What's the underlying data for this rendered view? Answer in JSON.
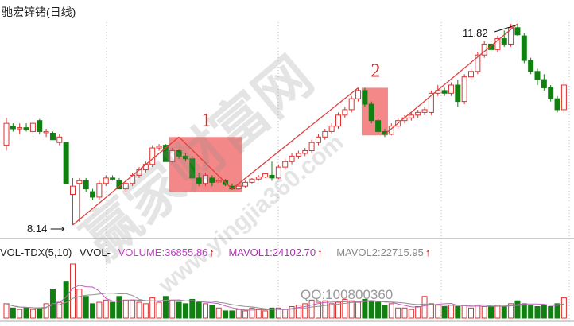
{
  "title": "驰宏锌锗(日线)",
  "annotations": {
    "low_label": "8.14",
    "high_label": "11.82",
    "box1_label": "1",
    "box2_label": "2",
    "qq": "QQ:100800360"
  },
  "watermark": {
    "text1": "赢家财富网",
    "text2": "www.yingjia360.com"
  },
  "volume_header": {
    "indicator": "VOL-TDX(5,10)",
    "vvol": "VVOL-",
    "volume": "VOLUME:36855.86",
    "mavol1": "MAVOL1:24102.70",
    "mavol2": "MAVOL2:22715.95",
    "arrow": "↑"
  },
  "colors": {
    "up": "#e03030",
    "down": "#108010",
    "box": "#f06060",
    "ma1": "#c060c0",
    "ma2": "#909090",
    "volume_text": "#c040c0"
  },
  "chart_data": {
    "type": "candlestick",
    "title": "驰宏锌锗(日线)",
    "price_range": [
      8.14,
      11.82
    ],
    "grid": "vertical dotted",
    "candles_ohlc": [
      [
        9.6,
        10.1,
        9.5,
        10.0
      ],
      [
        9.95,
        10.0,
        9.85,
        9.9
      ],
      [
        9.9,
        10.0,
        9.8,
        9.92
      ],
      [
        9.92,
        10.0,
        9.85,
        9.88
      ],
      [
        9.85,
        10.05,
        9.8,
        10.0
      ],
      [
        10.05,
        10.08,
        9.8,
        9.85
      ],
      [
        9.85,
        9.9,
        9.75,
        9.85
      ],
      [
        9.82,
        9.85,
        9.7,
        9.7
      ],
      [
        9.65,
        9.8,
        9.6,
        9.75
      ],
      [
        9.65,
        9.65,
        8.9,
        8.9
      ],
      [
        8.7,
        9.0,
        8.14,
        8.85
      ],
      [
        8.9,
        9.0,
        8.2,
        8.95
      ],
      [
        8.95,
        9.0,
        8.75,
        8.8
      ],
      [
        8.75,
        8.8,
        8.6,
        8.65
      ],
      [
        8.65,
        8.95,
        8.6,
        8.9
      ],
      [
        8.9,
        9.05,
        8.85,
        9.0
      ],
      [
        9.0,
        9.05,
        8.95,
        8.98
      ],
      [
        8.95,
        9.0,
        8.85,
        8.8
      ],
      [
        8.8,
        8.95,
        8.75,
        8.9
      ],
      [
        8.9,
        9.1,
        8.85,
        9.05
      ],
      [
        9.05,
        9.2,
        9.0,
        9.15
      ],
      [
        9.15,
        9.3,
        9.1,
        9.25
      ],
      [
        9.25,
        9.6,
        9.2,
        9.55
      ],
      [
        9.55,
        9.62,
        9.5,
        9.58
      ],
      [
        9.6,
        9.62,
        9.3,
        9.3
      ],
      [
        9.3,
        9.55,
        9.28,
        9.5
      ],
      [
        9.5,
        9.52,
        9.35,
        9.4
      ],
      [
        9.4,
        9.45,
        9.3,
        9.35
      ],
      [
        9.35,
        9.4,
        9.0,
        9.0
      ],
      [
        9.0,
        9.1,
        8.85,
        8.9
      ],
      [
        8.9,
        9.1,
        8.85,
        9.05
      ],
      [
        9.0,
        9.05,
        8.85,
        8.92
      ],
      [
        8.95,
        9.0,
        8.9,
        8.95
      ],
      [
        8.95,
        8.98,
        8.85,
        8.88
      ],
      [
        8.85,
        8.9,
        8.78,
        8.8
      ],
      [
        8.8,
        8.9,
        8.78,
        8.85
      ],
      [
        8.85,
        8.95,
        8.82,
        8.92
      ],
      [
        8.92,
        9.0,
        8.9,
        8.98
      ],
      [
        8.98,
        9.05,
        8.95,
        9.02
      ],
      [
        9.02,
        9.1,
        9.0,
        9.08
      ],
      [
        9.05,
        9.3,
        8.95,
        9.0
      ],
      [
        9.0,
        9.25,
        8.98,
        9.2
      ],
      [
        9.2,
        9.35,
        9.15,
        9.3
      ],
      [
        9.3,
        9.45,
        9.25,
        9.4
      ],
      [
        9.4,
        9.5,
        9.35,
        9.45
      ],
      [
        9.45,
        9.55,
        9.4,
        9.5
      ],
      [
        9.5,
        9.7,
        9.45,
        9.65
      ],
      [
        9.65,
        9.8,
        9.6,
        9.75
      ],
      [
        9.75,
        9.9,
        9.7,
        9.85
      ],
      [
        9.85,
        10.0,
        9.8,
        9.95
      ],
      [
        9.95,
        10.2,
        9.9,
        10.15
      ],
      [
        10.15,
        10.3,
        10.1,
        10.25
      ],
      [
        10.25,
        10.5,
        10.2,
        10.45
      ],
      [
        10.45,
        10.65,
        10.4,
        10.6
      ],
      [
        10.6,
        10.65,
        10.3,
        10.35
      ],
      [
        10.35,
        10.4,
        10.0,
        10.05
      ],
      [
        10.05,
        10.1,
        9.8,
        9.85
      ],
      [
        9.85,
        9.9,
        9.75,
        9.8
      ],
      [
        9.8,
        10.0,
        9.78,
        9.95
      ],
      [
        9.95,
        10.1,
        9.9,
        10.05
      ],
      [
        10.05,
        10.15,
        10.0,
        10.1
      ],
      [
        10.1,
        10.2,
        10.05,
        10.15
      ],
      [
        10.15,
        10.25,
        10.1,
        10.2
      ],
      [
        10.2,
        10.3,
        10.15,
        10.25
      ],
      [
        10.2,
        10.6,
        10.15,
        10.55
      ],
      [
        10.55,
        10.7,
        10.5,
        10.6
      ],
      [
        10.6,
        10.65,
        10.5,
        10.55
      ],
      [
        10.55,
        10.75,
        10.5,
        10.7
      ],
      [
        10.7,
        10.8,
        10.3,
        10.4
      ],
      [
        10.4,
        10.9,
        10.35,
        10.85
      ],
      [
        10.85,
        11.0,
        10.8,
        10.95
      ],
      [
        10.95,
        11.3,
        10.9,
        11.25
      ],
      [
        11.25,
        11.5,
        11.2,
        11.45
      ],
      [
        11.45,
        11.5,
        11.3,
        11.35
      ],
      [
        11.35,
        11.6,
        11.3,
        11.55
      ],
      [
        11.55,
        11.7,
        11.4,
        11.45
      ],
      [
        11.45,
        11.82,
        11.4,
        11.75
      ],
      [
        11.75,
        11.8,
        11.6,
        11.62
      ],
      [
        11.6,
        11.65,
        11.1,
        11.15
      ],
      [
        11.15,
        11.2,
        10.9,
        10.95
      ],
      [
        10.95,
        11.0,
        10.7,
        10.8
      ],
      [
        10.8,
        10.9,
        10.6,
        10.65
      ],
      [
        10.65,
        10.7,
        10.4,
        10.45
      ],
      [
        10.45,
        10.5,
        10.2,
        10.25
      ],
      [
        10.25,
        10.8,
        10.2,
        10.7
      ]
    ],
    "volume": [
      20,
      14,
      12,
      14,
      12,
      14,
      20,
      40,
      22,
      50,
      75,
      40,
      30,
      20,
      22,
      25,
      22,
      30,
      25,
      25,
      22,
      20,
      28,
      22,
      30,
      25,
      22,
      20,
      26,
      22,
      20,
      18,
      14,
      10,
      10,
      12,
      10,
      14,
      12,
      10,
      14,
      14,
      12,
      16,
      18,
      20,
      25,
      22,
      24,
      20,
      22,
      26,
      24,
      22,
      26,
      24,
      22,
      18,
      20,
      14,
      14,
      12,
      16,
      30,
      20,
      18,
      16,
      18,
      16,
      18,
      14,
      18,
      16,
      16,
      18,
      16,
      20,
      24,
      20,
      18,
      16,
      18,
      16,
      20,
      28
    ],
    "trendlines": [
      [
        10,
        8.14,
        26,
        9.75
      ],
      [
        26,
        9.75,
        34,
        8.8
      ],
      [
        34,
        8.8,
        53,
        10.65
      ],
      [
        57,
        9.8,
        77,
        11.82
      ]
    ],
    "boxes": [
      {
        "label": "1",
        "from": 25,
        "to": 35,
        "low": 8.75,
        "high": 9.75
      },
      {
        "label": "2",
        "from": 54,
        "to": 57,
        "low": 9.78,
        "high": 10.65
      }
    ]
  }
}
